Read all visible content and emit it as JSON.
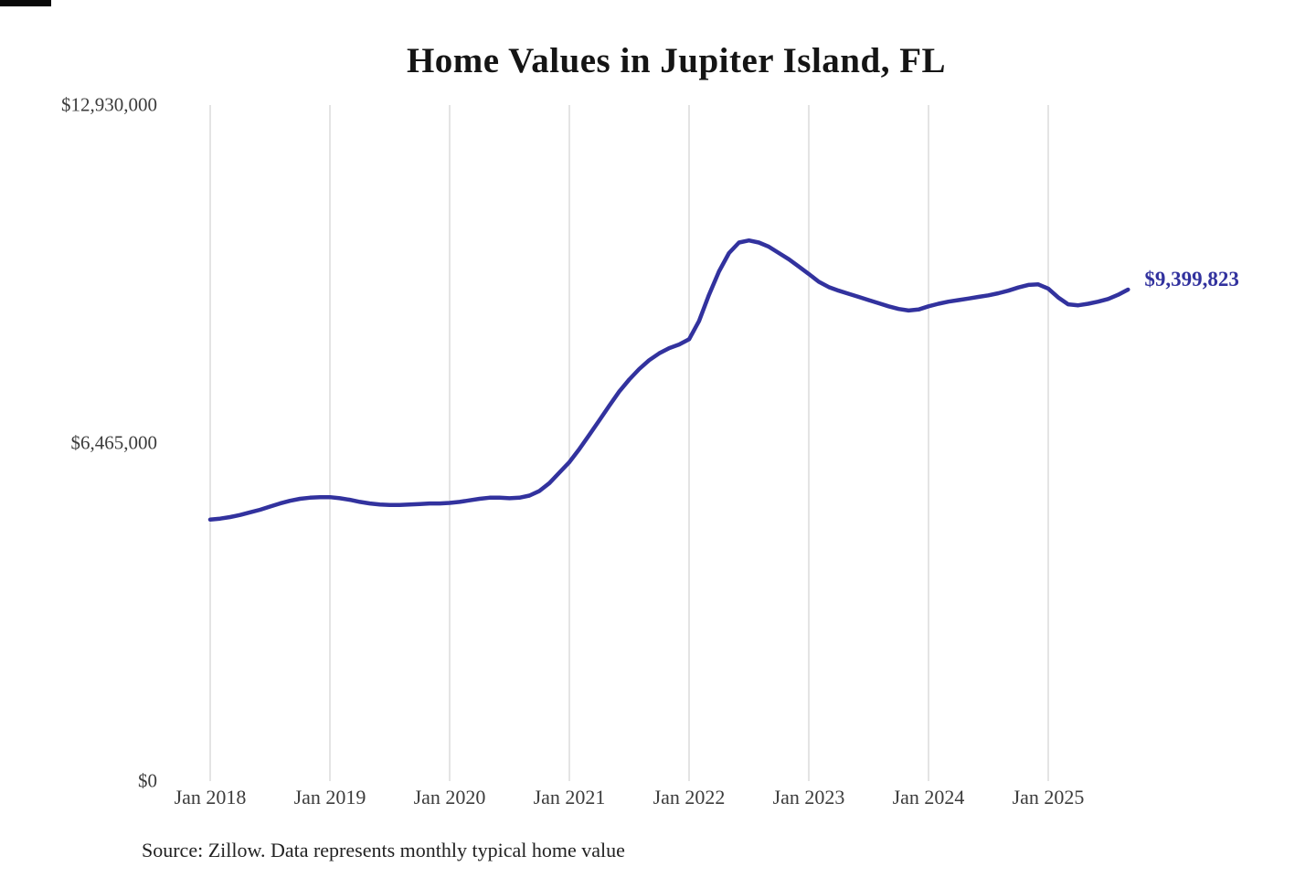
{
  "chart": {
    "title": "Home Values in Jupiter Island, FL",
    "source_note": "Source: Zillow. Data represents monthly typical home value",
    "line_color": "#32329e",
    "grid_color": "#c9c9c9",
    "end_label_color": "#32329e"
  },
  "chart_data": {
    "type": "line",
    "title": "Home Values in Jupiter Island, FL",
    "xlabel": "",
    "ylabel": "",
    "x_unit": "month",
    "x_start": "2018-01",
    "x_end": "2025-09",
    "ylim": [
      0,
      12930000
    ],
    "grid": "vertical-only",
    "end_label": "$9,399,823",
    "latest_value": 9399823,
    "yticks": [
      {
        "value": 0,
        "label": "$0"
      },
      {
        "value": 6465000,
        "label": "$6,465,000"
      },
      {
        "value": 12930000,
        "label": "$12,930,000"
      }
    ],
    "xticks": [
      "Jan 2018",
      "Jan 2019",
      "Jan 2020",
      "Jan 2021",
      "Jan 2022",
      "Jan 2023",
      "Jan 2024",
      "Jan 2025"
    ],
    "values": [
      5000000,
      5020000,
      5050000,
      5090000,
      5140000,
      5190000,
      5250000,
      5310000,
      5360000,
      5400000,
      5420000,
      5430000,
      5430000,
      5410000,
      5380000,
      5340000,
      5310000,
      5290000,
      5280000,
      5280000,
      5290000,
      5300000,
      5310000,
      5310000,
      5320000,
      5340000,
      5370000,
      5400000,
      5420000,
      5420000,
      5410000,
      5420000,
      5460000,
      5550000,
      5700000,
      5900000,
      6100000,
      6350000,
      6620000,
      6900000,
      7180000,
      7450000,
      7680000,
      7880000,
      8050000,
      8180000,
      8280000,
      8350000,
      8450000,
      8800000,
      9300000,
      9750000,
      10100000,
      10300000,
      10340000,
      10300000,
      10220000,
      10100000,
      9980000,
      9840000,
      9700000,
      9550000,
      9450000,
      9380000,
      9320000,
      9260000,
      9200000,
      9140000,
      9080000,
      9030000,
      9000000,
      9020000,
      9080000,
      9130000,
      9170000,
      9200000,
      9230000,
      9260000,
      9290000,
      9330000,
      9380000,
      9440000,
      9490000,
      9500000,
      9420000,
      9250000,
      9120000,
      9100000,
      9130000,
      9170000,
      9220000,
      9300000,
      9399823
    ]
  }
}
